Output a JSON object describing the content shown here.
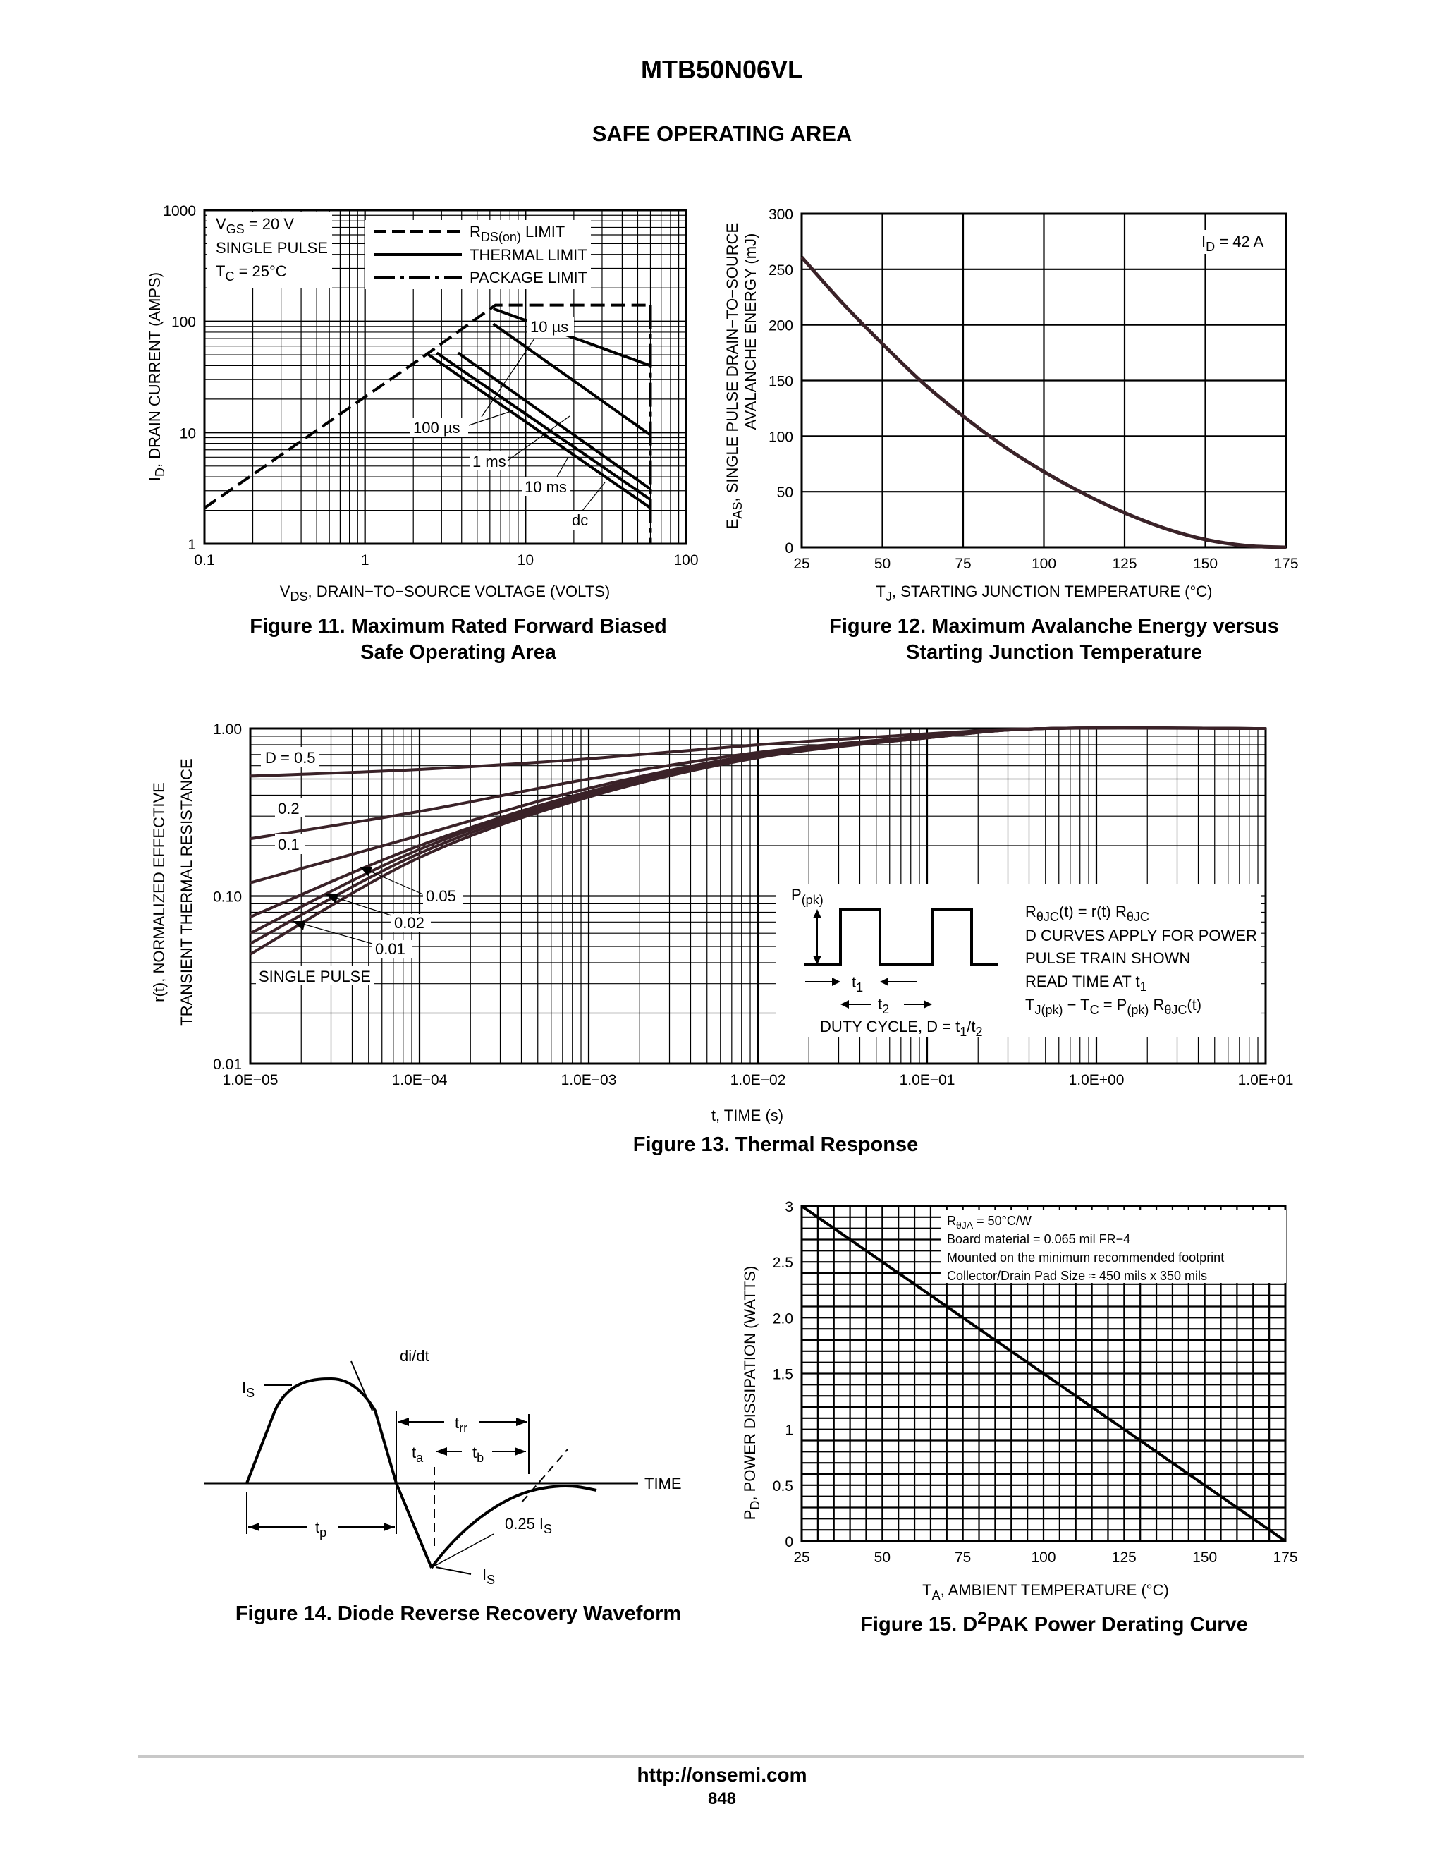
{
  "header": {
    "part_number": "MTB50N06VL",
    "section_title": "SAFE OPERATING AREA"
  },
  "figures": {
    "fig11": {
      "caption_line1": "Figure 11. Maximum Rated Forward Biased",
      "caption_line2": "Safe Operating Area",
      "ylabel": "I",
      "ylabel_sub": "D",
      "ylabel_rest": ", DRAIN CURRENT (AMPS)",
      "xlabel": "V",
      "xlabel_sub": "DS",
      "xlabel_rest": ", DRAIN−TO−SOURCE VOLTAGE (VOLTS)",
      "cond1": "V",
      "cond1_sub": "GS",
      "cond1_rest": " = 20 V",
      "cond2": "SINGLE PULSE",
      "cond3": "T",
      "cond3_sub": "C",
      "cond3_rest": " = 25°C",
      "legend1": "R",
      "legend1_sub": "DS(on)",
      "legend1_rest": " LIMIT",
      "legend2": "THERMAL LIMIT",
      "legend3": "PACKAGE LIMIT",
      "ann_10us": "10 µs",
      "ann_100us": "100 µs",
      "ann_1ms": "1 ms",
      "ann_10ms": "10 ms",
      "ann_dc": "dc"
    },
    "fig12": {
      "caption_line1": "Figure 12. Maximum Avalanche Energy versus",
      "caption_line2": "Starting Junction Temperature",
      "ylabel1": "E",
      "ylabel1_sub": "AS",
      "ylabel1_rest": ", SINGLE PULSE DRAIN−TO−SOURCE",
      "ylabel2": "AVALANCHE ENERGY (mJ)",
      "xlabel": "T",
      "xlabel_sub": "J",
      "xlabel_rest": ", STARTING JUNCTION TEMPERATURE (°C)",
      "annotation": "I",
      "annotation_sub": "D",
      "annotation_rest": " = 42 A"
    },
    "fig13": {
      "caption": "Figure 13. Thermal Response",
      "ylabel1": "r(t), NORMALIZED EFFECTIVE",
      "ylabel2": "TRANSIENT THERMAL RESISTANCE",
      "xlabel": "t, TIME (s)",
      "lbl_d05": "D = 0.5",
      "lbl_02": "0.2",
      "lbl_01": "0.1",
      "lbl_005": "0.05",
      "lbl_002": "0.02",
      "lbl_001": "0.01",
      "lbl_single": "SINGLE PULSE",
      "ppk": "P",
      "ppk_sub": "(pk)",
      "t1": "t",
      "t1_sub": "1",
      "t2": "t",
      "t2_sub": "2",
      "duty": "DUTY CYCLE, D = t",
      "duty_sub1": "1",
      "duty_mid": "/t",
      "duty_sub2": "2",
      "note1a": "R",
      "note1a_sub": "θJC",
      "note1b": "(t) = r(t) R",
      "note1b_sub": "θJC",
      "note2": "D CURVES APPLY FOR POWER",
      "note3": "PULSE TRAIN SHOWN",
      "note4": "READ TIME AT t",
      "note4_sub": "1",
      "note5a": "T",
      "note5a_sub": "J(pk)",
      "note5b": " − T",
      "note5b_sub": "C",
      "note5c": " = P",
      "note5c_sub": "(pk)",
      "note5d": " R",
      "note5d_sub": "θJC",
      "note5e": "(t)"
    },
    "fig14": {
      "caption": "Figure 14. Diode Reverse Recovery Waveform",
      "is_top": "I",
      "is_top_sub": "S",
      "didt": "di/dt",
      "trr": "t",
      "trr_sub": "rr",
      "ta": "t",
      "ta_sub": "a",
      "tb": "t",
      "tb_sub": "b",
      "time": "TIME",
      "tp": "t",
      "tp_sub": "p",
      "quarter": "0.25 I",
      "quarter_sub": "S",
      "is_bot": "I",
      "is_bot_sub": "S"
    },
    "fig15": {
      "caption_a": "Figure 15. D",
      "caption_sup": "2",
      "caption_b": "PAK Power Derating Curve",
      "ylabel": "P",
      "ylabel_sub": "D",
      "ylabel_rest": ", POWER DISSIPATION (WATTS)",
      "xlabel": "T",
      "xlabel_sub": "A",
      "xlabel_rest": ", AMBIENT TEMPERATURE (°C)",
      "note1a": "R",
      "note1a_sub": "θJA",
      "note1b": " = 50°C/W",
      "note2": "Board material = 0.065 mil FR−4",
      "note3": "Mounted on the minimum recommended footprint",
      "note4": "Collector/Drain Pad Size ≈ 450 mils x 350 mils"
    }
  },
  "chart_data": [
    {
      "id": "fig11",
      "type": "line",
      "x_scale": "log",
      "y_scale": "log",
      "xlim": [
        0.1,
        100
      ],
      "ylim": [
        1,
        1000
      ],
      "x_tick_labels": [
        "0.1",
        "1",
        "10",
        "100"
      ],
      "y_tick_labels": [
        "1",
        "10",
        "100",
        "1000"
      ],
      "grid": true,
      "series": [
        {
          "name": "RDS(on) LIMIT",
          "style": "dashed",
          "x": [
            0.1,
            2.3,
            6.5,
            60
          ],
          "y": [
            2.1,
            48,
            140,
            140
          ]
        },
        {
          "name": "PACKAGE LIMIT",
          "style": "dashdot",
          "x": [
            60,
            60
          ],
          "y": [
            140,
            1
          ]
        },
        {
          "name": "10 µs",
          "style": "solid",
          "x": [
            6.3,
            60
          ],
          "y": [
            130,
            40
          ]
        },
        {
          "name": "100 µs",
          "style": "solid",
          "x": [
            6.3,
            60
          ],
          "y": [
            95,
            9.5
          ]
        },
        {
          "name": "1 ms",
          "style": "solid",
          "x": [
            3.8,
            60
          ],
          "y": [
            52,
            3.1
          ]
        },
        {
          "name": "10 ms",
          "style": "solid",
          "x": [
            2.8,
            60
          ],
          "y": [
            52,
            2.5
          ]
        },
        {
          "name": "dc",
          "style": "solid",
          "x": [
            2.4,
            60
          ],
          "y": [
            52,
            2.1
          ]
        }
      ]
    },
    {
      "id": "fig12",
      "type": "line",
      "xlim": [
        25,
        175
      ],
      "ylim": [
        0,
        300
      ],
      "x_tick_labels": [
        "25",
        "50",
        "75",
        "100",
        "125",
        "150",
        "175"
      ],
      "y_tick_labels": [
        "0",
        "50",
        "100",
        "150",
        "200",
        "250",
        "300"
      ],
      "grid": true,
      "series": [
        {
          "x": [
            25,
            37.5,
            50,
            62.5,
            75,
            87.5,
            100,
            112.5,
            125,
            137.5,
            150,
            162.5,
            175
          ],
          "y": [
            261,
            220,
            183,
            148,
            118,
            91,
            68,
            48,
            31,
            17,
            7,
            1.5,
            0
          ]
        }
      ]
    },
    {
      "id": "fig13",
      "type": "line",
      "x_scale": "log",
      "y_scale": "log",
      "xlim": [
        1e-05,
        10
      ],
      "ylim": [
        0.01,
        1.0
      ],
      "x_tick_labels": [
        "1.0E−05",
        "1.0E−04",
        "1.0E−03",
        "1.0E−02",
        "1.0E−01",
        "1.0E+00",
        "1.0E+01"
      ],
      "y_tick_labels": [
        "0.01",
        "0.10",
        "1.00"
      ],
      "grid": true,
      "series": [
        {
          "name": "D = 0.5",
          "x": [
            1e-05,
            0.0001,
            0.001,
            0.01,
            0.1,
            0.5,
            10
          ],
          "y": [
            0.52,
            0.57,
            0.66,
            0.8,
            0.93,
            1.0,
            1.0
          ]
        },
        {
          "name": "0.2",
          "x": [
            1e-05,
            0.0001,
            0.001,
            0.01,
            0.1,
            0.5,
            10
          ],
          "y": [
            0.22,
            0.32,
            0.5,
            0.72,
            0.9,
            1.0,
            1.0
          ]
        },
        {
          "name": "0.1",
          "x": [
            1e-05,
            0.0001,
            0.001,
            0.01,
            0.1,
            0.5,
            10
          ],
          "y": [
            0.12,
            0.23,
            0.44,
            0.7,
            0.89,
            1.0,
            1.0
          ]
        },
        {
          "name": "0.05",
          "x": [
            1e-05,
            0.0001,
            0.001,
            0.01,
            0.1,
            0.5,
            10
          ],
          "y": [
            0.075,
            0.2,
            0.42,
            0.69,
            0.89,
            1.0,
            1.0
          ]
        },
        {
          "name": "0.02",
          "x": [
            1e-05,
            0.0001,
            0.001,
            0.01,
            0.1,
            0.5,
            10
          ],
          "y": [
            0.06,
            0.19,
            0.41,
            0.68,
            0.88,
            1.0,
            1.0
          ]
        },
        {
          "name": "0.01",
          "x": [
            1e-05,
            0.0001,
            0.001,
            0.01,
            0.1,
            0.5,
            10
          ],
          "y": [
            0.052,
            0.18,
            0.4,
            0.68,
            0.88,
            1.0,
            1.0
          ]
        },
        {
          "name": "SINGLE PULSE",
          "x": [
            1e-05,
            0.0001,
            0.001,
            0.01,
            0.1,
            0.5,
            10
          ],
          "y": [
            0.045,
            0.17,
            0.39,
            0.67,
            0.88,
            1.0,
            1.0
          ]
        }
      ]
    },
    {
      "id": "fig15",
      "type": "line",
      "xlim": [
        25,
        175
      ],
      "ylim": [
        0,
        3
      ],
      "x_tick_labels": [
        "25",
        "50",
        "75",
        "100",
        "125",
        "150",
        "175"
      ],
      "y_tick_labels": [
        "0",
        "0.5",
        "1",
        "1.5",
        "2.0",
        "2.5",
        "3"
      ],
      "grid": true,
      "series": [
        {
          "x": [
            25,
            175
          ],
          "y": [
            3,
            0
          ]
        }
      ]
    }
  ],
  "footer": {
    "url": "http://onsemi.com",
    "page_number": "848"
  }
}
